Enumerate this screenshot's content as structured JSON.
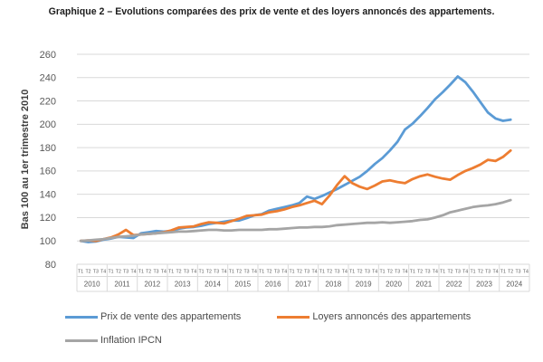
{
  "title": "Graphique 2 – Evolutions comparées des prix de vente et des loyers annoncés des appartements.",
  "chart_data": {
    "type": "line",
    "title": "Graphique 2 – Evolutions comparées des prix de vente et des loyers annoncés des appartements.",
    "ylabel": "Bas 100 au 1er trimestre 2010",
    "ylim": [
      80,
      260
    ],
    "y_ticks": [
      80,
      100,
      120,
      140,
      160,
      180,
      200,
      220,
      240,
      260
    ],
    "grid": true,
    "legend_position": "bottom",
    "x_years": [
      "2010",
      "2011",
      "2012",
      "2013",
      "2014",
      "2015",
      "2016",
      "2017",
      "2018",
      "2019",
      "2020",
      "2021",
      "2022",
      "2023",
      "2024"
    ],
    "x_quarters": [
      "T1",
      "T2",
      "T3",
      "T4"
    ],
    "colors": {
      "grid": "#D9D9D9",
      "axis_text": "#595959",
      "title_text": "#1c1c1c"
    },
    "series": [
      {
        "name": "Prix de vente des appartements",
        "color": "#5B9BD5",
        "values": [
          100,
          99,
          99.5,
          101,
          102,
          103.5,
          103,
          102.5,
          106.5,
          107.5,
          108.5,
          108,
          108.5,
          110.5,
          111.5,
          112,
          113,
          114.5,
          115.5,
          116.5,
          117.5,
          117.5,
          119.5,
          122,
          123,
          126,
          127.5,
          129,
          130.5,
          132.5,
          138,
          136,
          138.5,
          141.5,
          144.5,
          148,
          151.5,
          155,
          160,
          166,
          171,
          177.5,
          185,
          195.5,
          200.5,
          207,
          214,
          221.5,
          227.5,
          234,
          241,
          236,
          228,
          219,
          210,
          205,
          203,
          204
        ]
      },
      {
        "name": "Loyers annoncés des appartements",
        "color": "#ED7D31",
        "values": [
          100,
          100.5,
          100,
          101.5,
          103,
          105.5,
          109.5,
          105,
          105.5,
          106,
          106.5,
          107.5,
          109,
          111.5,
          112,
          112.5,
          114.5,
          116,
          115.5,
          115,
          117,
          119,
          121.5,
          122,
          122.5,
          124.5,
          125.5,
          127,
          129,
          130.5,
          132.5,
          134.5,
          131.5,
          139,
          148,
          155.5,
          149.5,
          146.5,
          144.5,
          147.5,
          151,
          152,
          150.5,
          149.5,
          153,
          155.5,
          157,
          155,
          153.5,
          152.5,
          156.5,
          160,
          162.5,
          165.5,
          169.5,
          168.5,
          172,
          177.5
        ]
      },
      {
        "name": "Inflation IPCN",
        "color": "#A5A5A5",
        "values": [
          100,
          100.5,
          101,
          101.5,
          102.5,
          103.5,
          104,
          104.5,
          105.5,
          106,
          106.5,
          107,
          107.5,
          108,
          108,
          108.5,
          109,
          109.5,
          109.5,
          109,
          109,
          109.5,
          109.5,
          109.5,
          109.5,
          110,
          110,
          110.5,
          111,
          111.5,
          111.5,
          112,
          112,
          112.5,
          113.5,
          114,
          114.5,
          115,
          115.5,
          115.5,
          116,
          115.5,
          116,
          116.5,
          117,
          118,
          118.5,
          120,
          122,
          124.5,
          126,
          127.5,
          129,
          130,
          130.5,
          131.5,
          133,
          135
        ]
      }
    ]
  }
}
